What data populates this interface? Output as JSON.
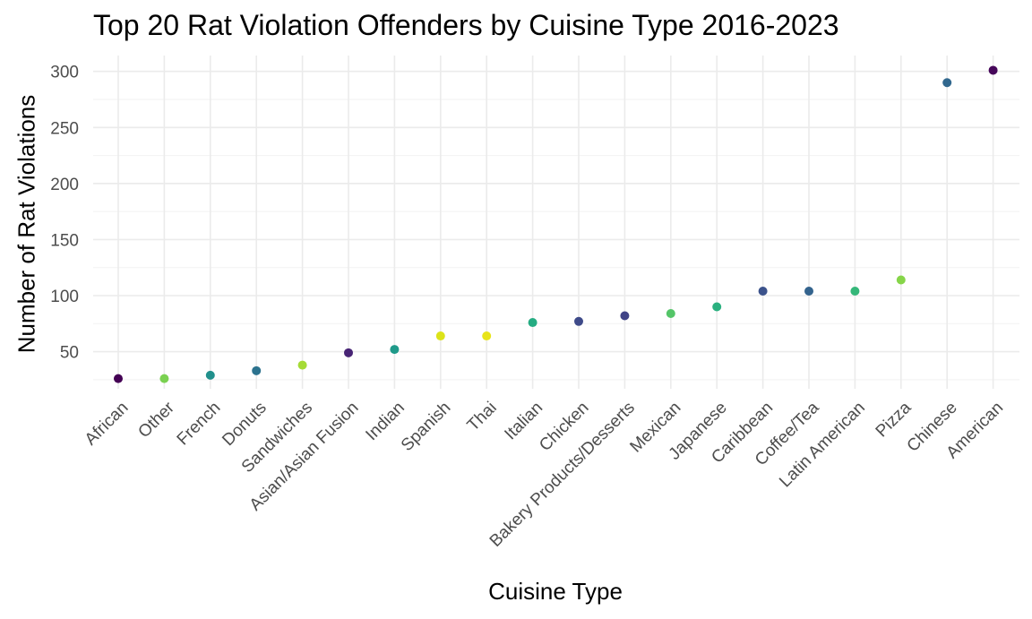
{
  "chart_data": {
    "type": "scatter",
    "title": "Top 20 Rat Violation Offenders by Cuisine Type 2016-2023",
    "xlabel": "Cuisine Type",
    "ylabel": "Number of Rat Violations",
    "categories": [
      "African",
      "Other",
      "French",
      "Donuts",
      "Sandwiches",
      "Asian/Asian Fusion",
      "Indian",
      "Spanish",
      "Thai",
      "Italian",
      "Chicken",
      "Bakery Products/Desserts",
      "Mexican",
      "Japanese",
      "Caribbean",
      "Coffee/Tea",
      "Latin American",
      "Pizza",
      "Chinese",
      "American"
    ],
    "values": [
      26,
      26,
      29,
      33,
      38,
      49,
      52,
      64,
      64,
      76,
      77,
      82,
      84,
      90,
      104,
      104,
      104,
      114,
      290,
      301
    ],
    "point_colors": [
      "#440154",
      "#7AD151",
      "#21908C",
      "#2C728E",
      "#A5DB36",
      "#482475",
      "#1F9A8A",
      "#DCE319",
      "#E8E419",
      "#25AC82",
      "#3E4A89",
      "#414487",
      "#54C568",
      "#2AB07F",
      "#3B528B",
      "#33638D",
      "#35B779",
      "#86D549",
      "#31688E",
      "#46075A"
    ],
    "yticks": [
      50,
      100,
      150,
      200,
      250,
      300
    ],
    "ylim": [
      15,
      310
    ],
    "grid": true,
    "legend": "none"
  }
}
